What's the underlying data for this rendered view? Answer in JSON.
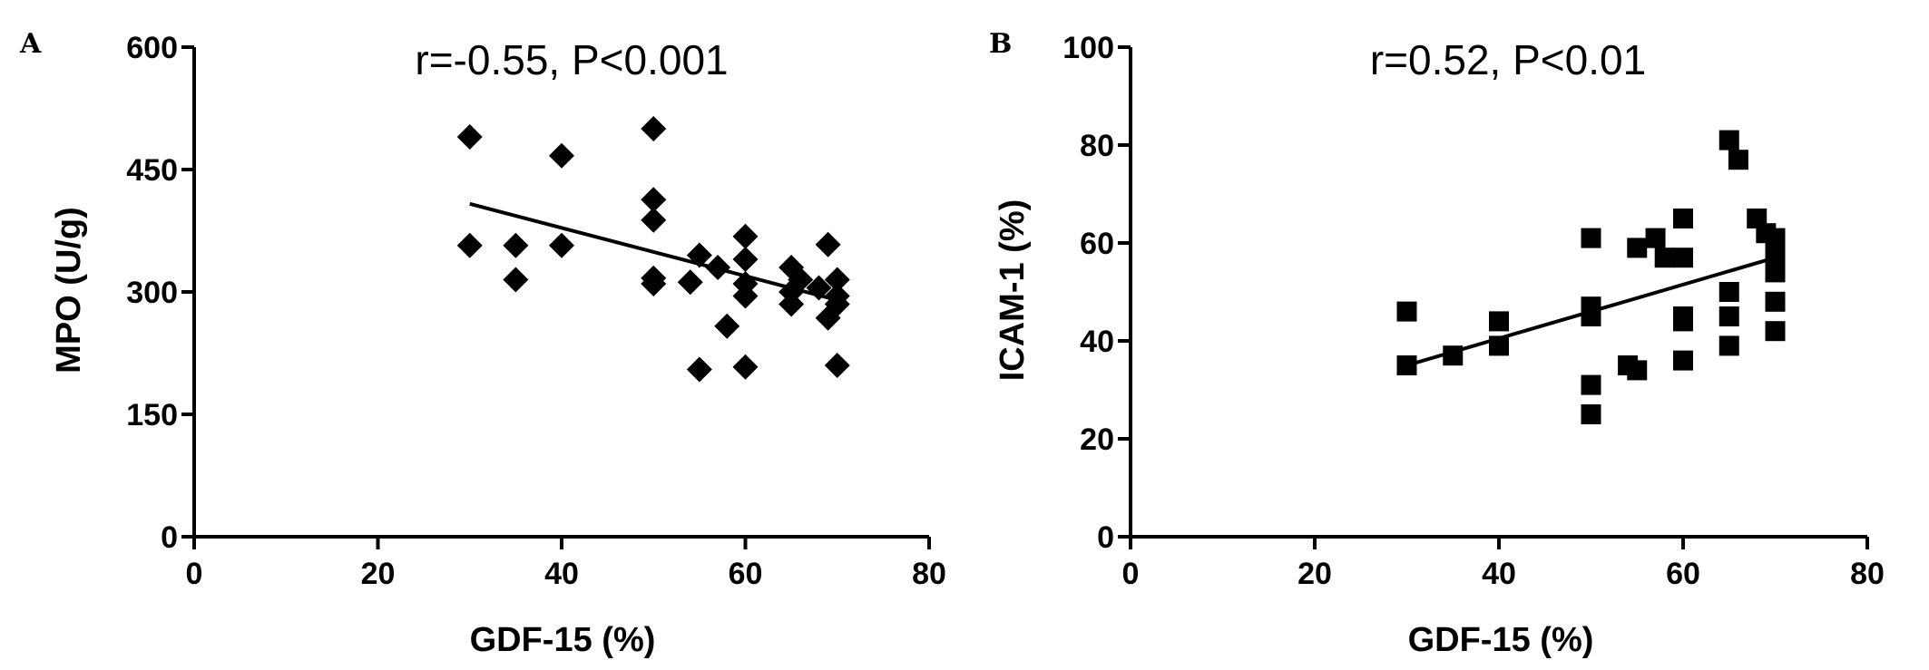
{
  "chart_data": [
    {
      "type": "scatter",
      "panel_label": "A",
      "annotation": "r=-0.55, P<0.001",
      "xlabel": "GDF-15 (%)",
      "ylabel": "MPO (U/g)",
      "xlim": [
        0,
        80
      ],
      "ylim": [
        0,
        600
      ],
      "xticks": [
        0,
        20,
        40,
        60,
        80
      ],
      "yticks": [
        0,
        150,
        300,
        450,
        600
      ],
      "marker": "diamond",
      "color": "#000000",
      "points": [
        {
          "x": 30,
          "y": 490
        },
        {
          "x": 30,
          "y": 357
        },
        {
          "x": 35,
          "y": 357
        },
        {
          "x": 35,
          "y": 315
        },
        {
          "x": 40,
          "y": 467
        },
        {
          "x": 40,
          "y": 357
        },
        {
          "x": 50,
          "y": 500
        },
        {
          "x": 50,
          "y": 413
        },
        {
          "x": 50,
          "y": 388
        },
        {
          "x": 50,
          "y": 317
        },
        {
          "x": 50,
          "y": 310
        },
        {
          "x": 54,
          "y": 312
        },
        {
          "x": 55,
          "y": 345
        },
        {
          "x": 55,
          "y": 205
        },
        {
          "x": 57,
          "y": 330
        },
        {
          "x": 58,
          "y": 258
        },
        {
          "x": 60,
          "y": 368
        },
        {
          "x": 60,
          "y": 340
        },
        {
          "x": 60,
          "y": 310
        },
        {
          "x": 60,
          "y": 295
        },
        {
          "x": 60,
          "y": 208
        },
        {
          "x": 65,
          "y": 330
        },
        {
          "x": 65,
          "y": 300
        },
        {
          "x": 65,
          "y": 285
        },
        {
          "x": 66,
          "y": 315
        },
        {
          "x": 68,
          "y": 305
        },
        {
          "x": 69,
          "y": 358
        },
        {
          "x": 69,
          "y": 268
        },
        {
          "x": 70,
          "y": 315
        },
        {
          "x": 70,
          "y": 295
        },
        {
          "x": 70,
          "y": 285
        },
        {
          "x": 70,
          "y": 210
        }
      ],
      "fit_line": {
        "x": [
          30,
          70
        ],
        "y": [
          408,
          290
        ]
      }
    },
    {
      "type": "scatter",
      "panel_label": "B",
      "annotation": "r=0.52, P<0.01",
      "xlabel": "GDF-15 (%)",
      "ylabel": "ICAM-1 (%)",
      "xlim": [
        0,
        80
      ],
      "ylim": [
        0,
        100
      ],
      "xticks": [
        0,
        20,
        40,
        60,
        80
      ],
      "yticks": [
        0,
        20,
        40,
        60,
        80,
        100
      ],
      "marker": "square",
      "color": "#000000",
      "points": [
        {
          "x": 30,
          "y": 46
        },
        {
          "x": 30,
          "y": 35
        },
        {
          "x": 35,
          "y": 37
        },
        {
          "x": 40,
          "y": 44
        },
        {
          "x": 40,
          "y": 39
        },
        {
          "x": 50,
          "y": 61
        },
        {
          "x": 50,
          "y": 47
        },
        {
          "x": 50,
          "y": 45
        },
        {
          "x": 50,
          "y": 31
        },
        {
          "x": 50,
          "y": 25
        },
        {
          "x": 54,
          "y": 35
        },
        {
          "x": 55,
          "y": 59
        },
        {
          "x": 55,
          "y": 34
        },
        {
          "x": 57,
          "y": 61
        },
        {
          "x": 58,
          "y": 57
        },
        {
          "x": 60,
          "y": 65
        },
        {
          "x": 60,
          "y": 57
        },
        {
          "x": 60,
          "y": 45
        },
        {
          "x": 60,
          "y": 44
        },
        {
          "x": 60,
          "y": 36
        },
        {
          "x": 65,
          "y": 81
        },
        {
          "x": 65,
          "y": 50
        },
        {
          "x": 65,
          "y": 45
        },
        {
          "x": 65,
          "y": 39
        },
        {
          "x": 66,
          "y": 77
        },
        {
          "x": 68,
          "y": 65
        },
        {
          "x": 69,
          "y": 62
        },
        {
          "x": 70,
          "y": 61
        },
        {
          "x": 70,
          "y": 58
        },
        {
          "x": 70,
          "y": 54
        },
        {
          "x": 70,
          "y": 48
        },
        {
          "x": 70,
          "y": 42
        }
      ],
      "fit_line": {
        "x": [
          30,
          70
        ],
        "y": [
          35,
          57
        ]
      }
    }
  ]
}
